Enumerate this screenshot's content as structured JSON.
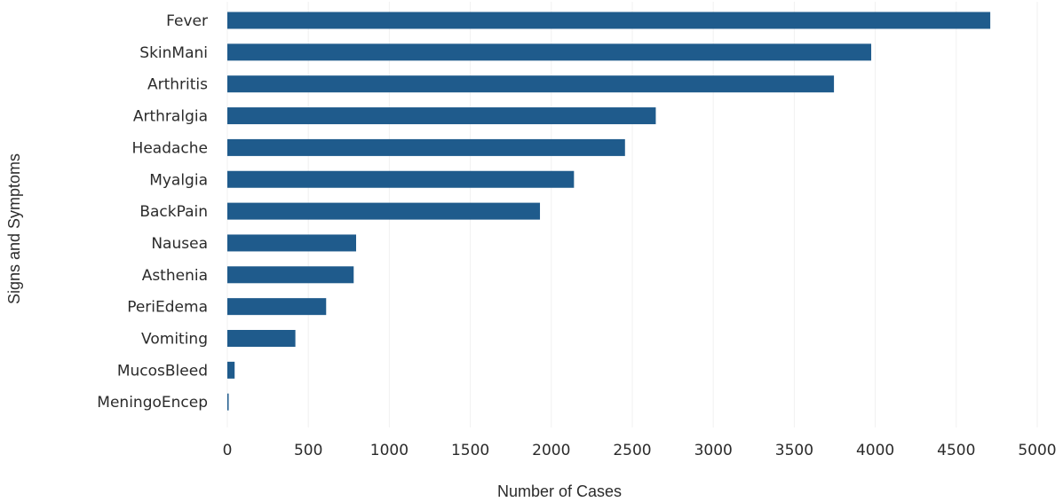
{
  "chart_data": {
    "type": "bar",
    "orientation": "horizontal",
    "categories": [
      "Fever",
      "SkinMani",
      "Arthritis",
      "Arthralgia",
      "Headache",
      "Myalgia",
      "BackPain",
      "Nausea",
      "Asthenia",
      "PeriEdema",
      "Vomiting",
      "MucosBleed",
      "MeningoEncep"
    ],
    "values": [
      4710,
      3975,
      3745,
      2645,
      2455,
      2140,
      1930,
      795,
      780,
      610,
      420,
      45,
      5
    ],
    "title": "",
    "xlabel": "Number of Cases",
    "ylabel": "Signs and Symptoms",
    "xlim": [
      0,
      5000
    ],
    "xticks": [
      0,
      500,
      1000,
      1500,
      2000,
      2500,
      3000,
      3500,
      4000,
      4500,
      5000
    ],
    "grid": true,
    "legend": "none",
    "bar_color": "#1f5b8c"
  }
}
